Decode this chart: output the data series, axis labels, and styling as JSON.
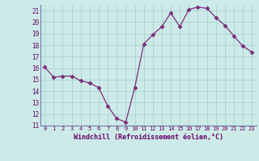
{
  "x": [
    0,
    1,
    2,
    3,
    4,
    5,
    6,
    7,
    8,
    9,
    10,
    11,
    12,
    13,
    14,
    15,
    16,
    17,
    18,
    19,
    20,
    21,
    22,
    23
  ],
  "y": [
    16.1,
    15.2,
    15.3,
    15.3,
    14.9,
    14.7,
    14.3,
    12.7,
    11.6,
    11.3,
    14.3,
    18.1,
    18.9,
    19.6,
    20.8,
    19.6,
    21.1,
    21.3,
    21.2,
    20.4,
    19.7,
    18.8,
    17.9,
    17.4
  ],
  "line_color": "#7b2d7b",
  "marker": "D",
  "marker_size": 2.5,
  "bg_color": "#cceae8",
  "grid_color": "#aad4d2",
  "xlabel": "Windchill (Refroidissement éolien,°C)",
  "xlabel_color": "#660066",
  "tick_color": "#660066",
  "axis_color": "#7777aa",
  "ylim": [
    11,
    21.5
  ],
  "xlim": [
    -0.5,
    23.5
  ],
  "yticks": [
    11,
    12,
    13,
    14,
    15,
    16,
    17,
    18,
    19,
    20,
    21
  ],
  "xticks": [
    0,
    1,
    2,
    3,
    4,
    5,
    6,
    7,
    8,
    9,
    10,
    11,
    12,
    13,
    14,
    15,
    16,
    17,
    18,
    19,
    20,
    21,
    22,
    23
  ]
}
